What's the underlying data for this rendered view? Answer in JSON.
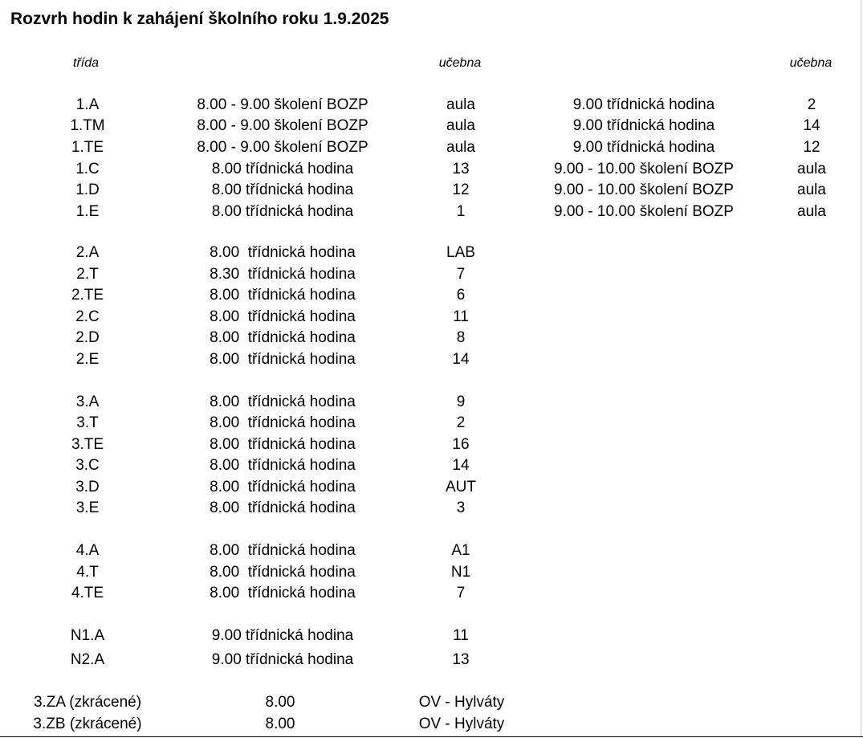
{
  "title": "Rozvrh hodin k zahájení školního roku 1.9.2025",
  "headers": {
    "class": "třída",
    "room": "učebna",
    "room2": "učebna"
  },
  "rows": [
    {
      "cls": "1.A",
      "act": "8.00 - 9.00 školení BOZP",
      "room": "aula",
      "act2": "9.00 třídnická hodina",
      "room2": "2"
    },
    {
      "cls": "1.TM",
      "act": "8.00 - 9.00 školení BOZP",
      "room": "aula",
      "act2": "9.00 třídnická hodina",
      "room2": "14"
    },
    {
      "cls": "1.TE",
      "act": "8.00 - 9.00 školení BOZP",
      "room": "aula",
      "act2": "9.00 třídnická hodina",
      "room2": "12"
    },
    {
      "cls": "1.C",
      "act": "8.00 třídnická hodina",
      "room": "13",
      "act2": "9.00 - 10.00 školení BOZP",
      "room2": "aula"
    },
    {
      "cls": "1.D",
      "act": "8.00 třídnická hodina",
      "room": "12",
      "act2": "9.00 - 10.00 školení BOZP",
      "room2": "aula"
    },
    {
      "cls": "1.E",
      "act": "8.00 třídnická hodina",
      "room": "1",
      "act2": "9.00 - 10.00 školení BOZP",
      "room2": "aula"
    },
    {
      "cls": "2.A",
      "act": "8.00  třídnická hodina",
      "room": "LAB"
    },
    {
      "cls": "2.T",
      "act": "8.30  třídnická hodina",
      "room": "7"
    },
    {
      "cls": "2.TE",
      "act": "8.00  třídnická hodina",
      "room": "6"
    },
    {
      "cls": "2.C",
      "act": "8.00  třídnická hodina",
      "room": "11"
    },
    {
      "cls": "2.D",
      "act": "8.00  třídnická hodina",
      "room": "8"
    },
    {
      "cls": "2.E",
      "act": "8.00  třídnická hodina",
      "room": "14"
    },
    {
      "cls": "3.A",
      "act": "8.00  třídnická hodina",
      "room": "9"
    },
    {
      "cls": "3.T",
      "act": "8.00  třídnická hodina",
      "room": "2"
    },
    {
      "cls": "3.TE",
      "act": "8.00  třídnická hodina",
      "room": "16"
    },
    {
      "cls": "3.C",
      "act": "8.00  třídnická hodina",
      "room": "14"
    },
    {
      "cls": "3.D",
      "act": "8.00  třídnická hodina",
      "room": "AUT"
    },
    {
      "cls": "3.E",
      "act": "8.00  třídnická hodina",
      "room": "3"
    },
    {
      "cls": "4.A",
      "act": "8.00  třídnická hodina",
      "room": "A1"
    },
    {
      "cls": "4.T",
      "act": "8.00  třídnická hodina",
      "room": "N1"
    },
    {
      "cls": "4.TE",
      "act": "8.00  třídnická hodina",
      "room": "7"
    },
    {
      "cls": "N1.A",
      "act": "9.00 třídnická hodina",
      "room": "11"
    },
    {
      "cls": "N2.A",
      "act": "9.00 třídnická hodina",
      "room": "13"
    },
    {
      "cls": "3.ZA (zkrácené)",
      "act": "8.00",
      "room": "OV - Hylváty"
    },
    {
      "cls": "3.ZB (zkrácené)",
      "act": "8.00",
      "room": "OV - Hylváty"
    }
  ]
}
